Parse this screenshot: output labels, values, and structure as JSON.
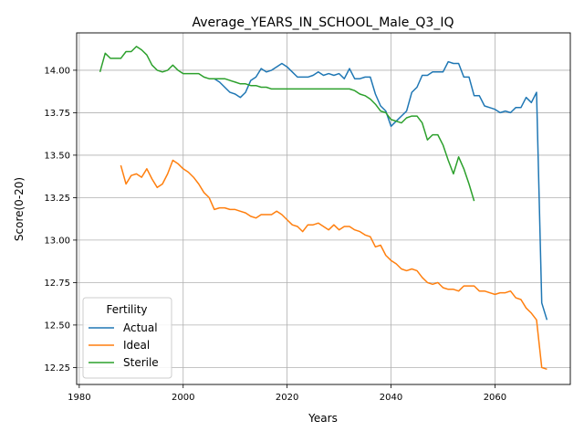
{
  "chart_data": {
    "type": "line",
    "title": "Average_YEARS_IN_SCHOOL_Male_Q3_IQ",
    "xlabel": "Years",
    "ylabel": "Score(0-20)",
    "xlim": [
      1979.5,
      2074.5
    ],
    "ylim": [
      12.15,
      14.22
    ],
    "xticks": [
      1980,
      2000,
      2020,
      2040,
      2060
    ],
    "yticks": [
      12.25,
      12.5,
      12.75,
      13.0,
      13.25,
      13.5,
      13.75,
      14.0
    ],
    "ytick_labels": [
      "12.25",
      "12.50",
      "12.75",
      "13.00",
      "13.25",
      "13.50",
      "13.75",
      "14.00"
    ],
    "grid": true,
    "legend": {
      "title": "Fertility",
      "placement": "lower-left"
    },
    "series": [
      {
        "name": "Actual",
        "color": "#1f77b4",
        "x": [
          2005,
          2006,
          2007,
          2008,
          2009,
          2010,
          2011,
          2012,
          2013,
          2014,
          2015,
          2016,
          2017,
          2018,
          2019,
          2020,
          2021,
          2022,
          2023,
          2024,
          2025,
          2026,
          2027,
          2028,
          2029,
          2030,
          2031,
          2032,
          2033,
          2034,
          2035,
          2036,
          2037,
          2038,
          2039,
          2040,
          2041,
          2042,
          2043,
          2044,
          2045,
          2046,
          2047,
          2048,
          2049,
          2050,
          2051,
          2052,
          2053,
          2054,
          2055,
          2056,
          2057,
          2058,
          2059,
          2060,
          2061,
          2062,
          2063,
          2064,
          2065,
          2066,
          2067,
          2068,
          2069,
          2070
        ],
        "y": [
          13.95,
          13.95,
          13.93,
          13.9,
          13.87,
          13.86,
          13.84,
          13.87,
          13.94,
          13.96,
          14.01,
          13.99,
          14.0,
          14.02,
          14.04,
          14.02,
          13.99,
          13.96,
          13.96,
          13.96,
          13.97,
          13.99,
          13.97,
          13.98,
          13.97,
          13.98,
          13.95,
          14.01,
          13.95,
          13.95,
          13.96,
          13.96,
          13.86,
          13.79,
          13.76,
          13.67,
          13.7,
          13.73,
          13.76,
          13.87,
          13.9,
          13.97,
          13.97,
          13.99,
          13.99,
          13.99,
          14.05,
          14.04,
          14.04,
          13.96,
          13.96,
          13.85,
          13.85,
          13.79,
          13.78,
          13.77,
          13.75,
          13.76,
          13.75,
          13.78,
          13.78,
          13.84,
          13.81,
          13.87,
          12.63,
          12.53
        ]
      },
      {
        "name": "Ideal",
        "color": "#ff7f0e",
        "x": [
          1988,
          1989,
          1990,
          1991,
          1992,
          1993,
          1994,
          1995,
          1996,
          1997,
          1998,
          1999,
          2000,
          2001,
          2002,
          2003,
          2004,
          2005,
          2006,
          2007,
          2008,
          2009,
          2010,
          2011,
          2012,
          2013,
          2014,
          2015,
          2016,
          2017,
          2018,
          2019,
          2020,
          2021,
          2022,
          2023,
          2024,
          2025,
          2026,
          2027,
          2028,
          2029,
          2030,
          2031,
          2032,
          2033,
          2034,
          2035,
          2036,
          2037,
          2038,
          2039,
          2040,
          2041,
          2042,
          2043,
          2044,
          2045,
          2046,
          2047,
          2048,
          2049,
          2050,
          2051,
          2052,
          2053,
          2054,
          2055,
          2056,
          2057,
          2058,
          2059,
          2060,
          2061,
          2062,
          2063,
          2064,
          2065,
          2066,
          2067,
          2068,
          2069,
          2070
        ],
        "y": [
          13.44,
          13.33,
          13.38,
          13.39,
          13.37,
          13.42,
          13.36,
          13.31,
          13.33,
          13.39,
          13.47,
          13.45,
          13.42,
          13.4,
          13.37,
          13.33,
          13.28,
          13.25,
          13.18,
          13.19,
          13.19,
          13.18,
          13.18,
          13.17,
          13.16,
          13.14,
          13.13,
          13.15,
          13.15,
          13.15,
          13.17,
          13.15,
          13.12,
          13.09,
          13.08,
          13.05,
          13.09,
          13.09,
          13.1,
          13.08,
          13.06,
          13.09,
          13.06,
          13.08,
          13.08,
          13.06,
          13.05,
          13.03,
          13.02,
          12.96,
          12.97,
          12.91,
          12.88,
          12.86,
          12.83,
          12.82,
          12.83,
          12.82,
          12.78,
          12.75,
          12.74,
          12.75,
          12.72,
          12.71,
          12.71,
          12.7,
          12.73,
          12.73,
          12.73,
          12.7,
          12.7,
          12.69,
          12.68,
          12.69,
          12.69,
          12.7,
          12.66,
          12.65,
          12.6,
          12.57,
          12.53,
          12.25,
          12.24
        ]
      },
      {
        "name": "Sterile",
        "color": "#2ca02c",
        "x": [
          1984,
          1985,
          1986,
          1987,
          1988,
          1989,
          1990,
          1991,
          1992,
          1993,
          1994,
          1995,
          1996,
          1997,
          1998,
          1999,
          2000,
          2001,
          2002,
          2003,
          2004,
          2005,
          2006,
          2007,
          2008,
          2009,
          2010,
          2011,
          2012,
          2013,
          2014,
          2015,
          2016,
          2017,
          2018,
          2019,
          2020,
          2021,
          2022,
          2023,
          2024,
          2025,
          2026,
          2027,
          2028,
          2029,
          2030,
          2031,
          2032,
          2033,
          2034,
          2035,
          2036,
          2037,
          2038,
          2039,
          2040,
          2041,
          2042,
          2043,
          2044,
          2045,
          2046,
          2047,
          2048,
          2049,
          2050,
          2051,
          2052,
          2053,
          2054,
          2055,
          2056
        ],
        "y": [
          13.99,
          14.1,
          14.07,
          14.07,
          14.07,
          14.11,
          14.11,
          14.14,
          14.12,
          14.09,
          14.03,
          14.0,
          13.99,
          14.0,
          14.03,
          14.0,
          13.98,
          13.98,
          13.98,
          13.98,
          13.96,
          13.95,
          13.95,
          13.95,
          13.95,
          13.94,
          13.93,
          13.92,
          13.92,
          13.91,
          13.91,
          13.9,
          13.9,
          13.89,
          13.89,
          13.89,
          13.89,
          13.89,
          13.89,
          13.89,
          13.89,
          13.89,
          13.89,
          13.89,
          13.89,
          13.89,
          13.89,
          13.89,
          13.89,
          13.88,
          13.86,
          13.85,
          13.83,
          13.8,
          13.76,
          13.75,
          13.71,
          13.7,
          13.69,
          13.72,
          13.73,
          13.73,
          13.69,
          13.59,
          13.62,
          13.62,
          13.56,
          13.47,
          13.39,
          13.49,
          13.42,
          13.33,
          13.23
        ]
      }
    ]
  }
}
